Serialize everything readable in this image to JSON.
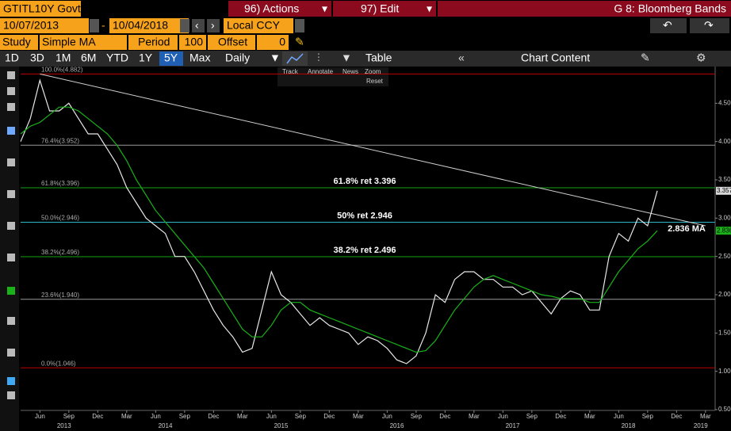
{
  "ui": {
    "ticker": "GTITL10Y Govt",
    "actions": "96) Actions",
    "edit": "97) Edit",
    "function": "G 8: Bloomberg Bands",
    "start_date": "10/07/2013",
    "dash": "-",
    "end_date": "10/04/2018",
    "currency": "Local CCY",
    "study_label": "Study",
    "study": "Simple MA",
    "period_label": "Period",
    "period": "100",
    "offset_label": "Offset",
    "offset": "0",
    "ranges": [
      "1D",
      "3D",
      "1M",
      "6M",
      "YTD",
      "1Y",
      "5Y",
      "Max"
    ],
    "selected_range": "5Y",
    "frequency": "Daily",
    "table": "Table",
    "chart_content": "Chart Content",
    "tools": [
      "Track",
      "Annotate",
      "News",
      "Zoom",
      "Reset"
    ]
  },
  "chart_data": {
    "type": "line",
    "xlim": [
      "2013-04",
      "2019-04"
    ],
    "ylim": [
      0.5,
      5.0
    ],
    "yticks": [
      {
        "value": 0.5,
        "label": "0.500"
      },
      {
        "value": 1.0,
        "label": "1.000"
      },
      {
        "value": 1.5,
        "label": "1.500"
      },
      {
        "value": 2.0,
        "label": "2.000"
      },
      {
        "value": 2.5,
        "label": "2.500"
      },
      {
        "value": 3.0,
        "label": "3.000"
      },
      {
        "value": 3.5,
        "label": "3.500"
      },
      {
        "value": 4.0,
        "label": "4.000"
      },
      {
        "value": 4.5,
        "label": "4.500"
      }
    ],
    "xticks": [
      {
        "value": "2013-06",
        "label": "Jun"
      },
      {
        "value": "2013-09",
        "label": "Sep"
      },
      {
        "value": "2013-12",
        "label": "Dec"
      },
      {
        "value": "2014-03",
        "label": "Mar"
      },
      {
        "value": "2014-06",
        "label": "Jun"
      },
      {
        "value": "2014-09",
        "label": "Sep"
      },
      {
        "value": "2014-12",
        "label": "Dec"
      },
      {
        "value": "2015-03",
        "label": "Mar"
      },
      {
        "value": "2015-06",
        "label": "Jun"
      },
      {
        "value": "2015-09",
        "label": "Sep"
      },
      {
        "value": "2015-12",
        "label": "Dec"
      },
      {
        "value": "2016-03",
        "label": "Mar"
      },
      {
        "value": "2016-06",
        "label": "Jun"
      },
      {
        "value": "2016-09",
        "label": "Sep"
      },
      {
        "value": "2016-12",
        "label": "Dec"
      },
      {
        "value": "2017-03",
        "label": "Mar"
      },
      {
        "value": "2017-06",
        "label": "Jun"
      },
      {
        "value": "2017-09",
        "label": "Sep"
      },
      {
        "value": "2017-12",
        "label": "Dec"
      },
      {
        "value": "2018-03",
        "label": "Mar"
      },
      {
        "value": "2018-06",
        "label": "Jun"
      },
      {
        "value": "2018-09",
        "label": "Sep"
      },
      {
        "value": "2018-12",
        "label": "Dec"
      },
      {
        "value": "2019-03",
        "label": "Mar"
      }
    ],
    "years": [
      2013,
      2014,
      2015,
      2016,
      2017,
      2018,
      2019
    ],
    "x": [
      "2013-04",
      "2013-05",
      "2013-06",
      "2013-07",
      "2013-08",
      "2013-09",
      "2013-10",
      "2013-11",
      "2013-12",
      "2014-01",
      "2014-02",
      "2014-03",
      "2014-04",
      "2014-05",
      "2014-06",
      "2014-07",
      "2014-08",
      "2014-09",
      "2014-10",
      "2014-11",
      "2014-12",
      "2015-01",
      "2015-02",
      "2015-03",
      "2015-04",
      "2015-05",
      "2015-06",
      "2015-07",
      "2015-08",
      "2015-09",
      "2015-10",
      "2015-11",
      "2015-12",
      "2016-01",
      "2016-02",
      "2016-03",
      "2016-04",
      "2016-05",
      "2016-06",
      "2016-07",
      "2016-08",
      "2016-09",
      "2016-10",
      "2016-11",
      "2016-12",
      "2017-01",
      "2017-02",
      "2017-03",
      "2017-04",
      "2017-05",
      "2017-06",
      "2017-07",
      "2017-08",
      "2017-09",
      "2017-10",
      "2017-11",
      "2017-12",
      "2018-01",
      "2018-02",
      "2018-03",
      "2018-04",
      "2018-05",
      "2018-06",
      "2018-07",
      "2018-08",
      "2018-09",
      "2018-10"
    ],
    "series": [
      {
        "color": "#e8e8e8",
        "values": [
          4.0,
          4.3,
          4.8,
          4.4,
          4.4,
          4.5,
          4.3,
          4.1,
          4.1,
          3.9,
          3.7,
          3.4,
          3.2,
          3.0,
          2.9,
          2.8,
          2.5,
          2.5,
          2.3,
          2.05,
          1.8,
          1.6,
          1.45,
          1.25,
          1.3,
          1.8,
          2.3,
          2.0,
          1.9,
          1.75,
          1.6,
          1.7,
          1.6,
          1.55,
          1.5,
          1.35,
          1.45,
          1.4,
          1.3,
          1.15,
          1.1,
          1.2,
          1.5,
          2.0,
          1.9,
          2.2,
          2.3,
          2.3,
          2.2,
          2.2,
          2.1,
          2.1,
          2.0,
          2.05,
          1.9,
          1.75,
          1.95,
          2.05,
          2.0,
          1.8,
          1.8,
          2.5,
          2.8,
          2.7,
          3.0,
          2.9,
          3.357
        ]
      },
      {
        "color": "#19b319",
        "values": [
          4.1,
          4.2,
          4.25,
          4.35,
          4.45,
          4.45,
          4.4,
          4.3,
          4.2,
          4.1,
          3.95,
          3.75,
          3.5,
          3.3,
          3.1,
          2.95,
          2.8,
          2.65,
          2.5,
          2.35,
          2.15,
          1.95,
          1.75,
          1.55,
          1.45,
          1.45,
          1.6,
          1.8,
          1.9,
          1.9,
          1.8,
          1.75,
          1.7,
          1.65,
          1.6,
          1.55,
          1.5,
          1.45,
          1.4,
          1.35,
          1.3,
          1.25,
          1.27,
          1.4,
          1.6,
          1.8,
          1.95,
          2.1,
          2.2,
          2.25,
          2.2,
          2.15,
          2.1,
          2.05,
          2.0,
          1.98,
          1.95,
          1.95,
          1.95,
          1.9,
          1.9,
          2.1,
          2.3,
          2.45,
          2.6,
          2.7,
          2.836
        ]
      }
    ],
    "trendline": {
      "x": [
        "2013-06",
        "2019-03"
      ],
      "values": [
        4.882,
        2.9
      ],
      "color": "#cfcfcf"
    },
    "levels": [
      {
        "label": "100.0%(4.882)",
        "value": 4.882,
        "color": "#c00000"
      },
      {
        "label": "76.4%(3.952)",
        "value": 3.952,
        "color": "#9a9a9a"
      },
      {
        "label": "61.8%(3.396)",
        "value": 3.396,
        "color": "#13a313",
        "note": "61.8% ret 3.396"
      },
      {
        "label": "50.0%(2.946)",
        "value": 2.946,
        "color": "#2fb7c7",
        "note": "50% ret 2.946"
      },
      {
        "label": "38.2%(2.496)",
        "value": 2.496,
        "color": "#13a313",
        "note": "38.2% ret 2.496"
      },
      {
        "label": "23.6%(1.940)",
        "value": 1.94,
        "color": "#9a9a9a"
      },
      {
        "label": "0.0%(1.046)",
        "value": 1.046,
        "color": "#c00000"
      }
    ],
    "right_labels": [
      {
        "value": 3.357,
        "label": "3.357",
        "color": "#d8d8d8"
      },
      {
        "value": 2.836,
        "label": "2.836",
        "color": "#19b319"
      }
    ],
    "ma_annotation": "2.836 MA"
  }
}
